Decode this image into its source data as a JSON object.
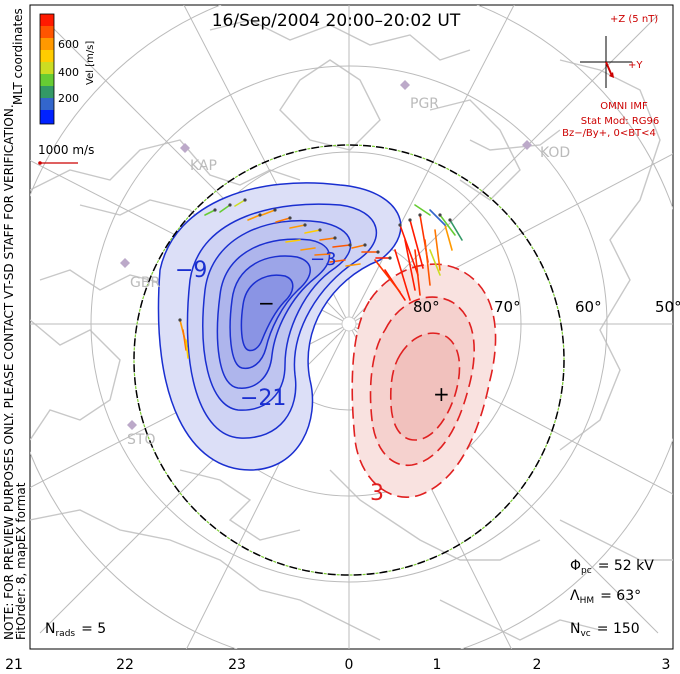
{
  "title": "16/Sep/2004 20:00–20:02 UT",
  "colorbar": {
    "label": "Vel [m/s]",
    "ticks": [
      "600",
      "400",
      "200"
    ],
    "colors": [
      "#ff1a00",
      "#ff5500",
      "#ff9900",
      "#ffcc00",
      "#ccdd22",
      "#66cc33",
      "#339966",
      "#3366cc",
      "#0022ff"
    ]
  },
  "coord_label": "MLT coordinates",
  "vector_scale": "1000 m/s",
  "imf": {
    "bz_label": "+Z (5 nT)",
    "by_label": "+Y",
    "source": "OMNI IMF",
    "model": "Stat Mod: RG96",
    "condition": "Bz−/By+, 0<BT<4"
  },
  "stations": [
    "PGR",
    "KOD",
    "KAP",
    "GBR",
    "STO"
  ],
  "lat_labels": [
    "80°",
    "70°",
    "60°",
    "50°"
  ],
  "mlt_labels": [
    "21",
    "22",
    "23",
    "0",
    "1",
    "2",
    "3"
  ],
  "contour_labels": {
    "neg9": "−9",
    "neg21": "−21",
    "neg3": "−3",
    "pos3": "3"
  },
  "markers": {
    "min": "−",
    "max": "+"
  },
  "side_note": "NOTE: FOR PREVIEW PURPOSES ONLY. PLEASE CONTACT VT-SD STAFF FOR VERIFICATION.",
  "side_note2": "FitOrder: 8, mapEX format",
  "nrads": {
    "label": "N",
    "sub": "rads",
    "value": "= 5"
  },
  "phi_pc": {
    "label": "Φ",
    "sub": "pc",
    "value": "= 52 kV"
  },
  "lambda_hm": {
    "label": "Λ",
    "sub": "HM",
    "value": "= 63°"
  },
  "n_vc": {
    "label": "N",
    "sub": "vc",
    "value": "= 150"
  },
  "colors": {
    "negative": "#1a2fd0",
    "positive": "#e02020",
    "neg_fill": "#c9cdf2",
    "pos_fill": "#f7d8d6",
    "grid": "#bbbbbb",
    "coast": "#c8c8c8"
  }
}
